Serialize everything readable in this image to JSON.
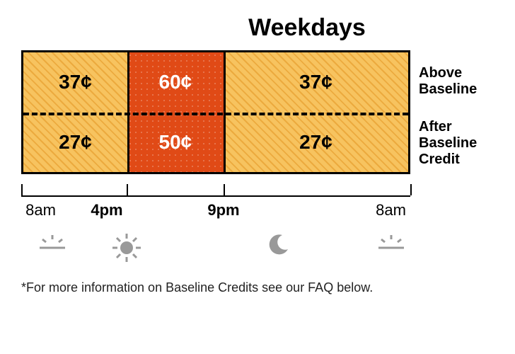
{
  "title": "Weekdays",
  "columns_pct": [
    27,
    25,
    48
  ],
  "divider1_pct": 27,
  "divider2_pct": 52,
  "rows": [
    {
      "label_line1": "Above",
      "label_line2": "Baseline",
      "cells": [
        {
          "value": "37¢",
          "type": "off"
        },
        {
          "value": "60¢",
          "type": "peak"
        },
        {
          "value": "37¢",
          "type": "off"
        }
      ]
    },
    {
      "label_line1": "After",
      "label_line2": "Baseline",
      "label_line3": "Credit",
      "cells": [
        {
          "value": "27¢",
          "type": "off"
        },
        {
          "value": "50¢",
          "type": "peak"
        },
        {
          "value": "27¢",
          "type": "off"
        }
      ]
    }
  ],
  "ticks_pct": [
    0,
    27,
    52,
    100
  ],
  "time_labels": [
    {
      "text": "8am",
      "pos_pct": 5,
      "bold": false
    },
    {
      "text": "4pm",
      "pos_pct": 22,
      "bold": true
    },
    {
      "text": "9pm",
      "pos_pct": 52,
      "bold": true
    },
    {
      "text": "8am",
      "pos_pct": 95,
      "bold": false
    }
  ],
  "icons": [
    {
      "name": "sunrise-icon",
      "pos_pct": 8
    },
    {
      "name": "sun-icon",
      "pos_pct": 27
    },
    {
      "name": "moon-icon",
      "pos_pct": 66
    },
    {
      "name": "sunrise-icon",
      "pos_pct": 95
    }
  ],
  "footnote": "*For more information on Baseline Credits see our FAQ below.",
  "colors": {
    "off_bg": "#f7c35f",
    "off_stripe": "#e39523",
    "peak_bg": "#e04a16",
    "border": "#000000",
    "icon": "#999999"
  }
}
